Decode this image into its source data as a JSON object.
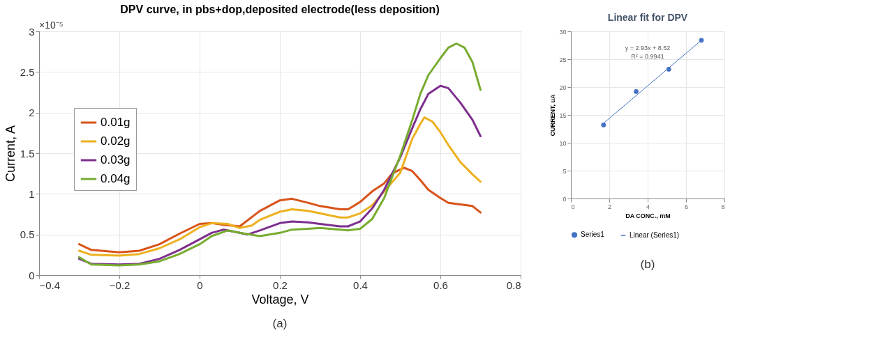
{
  "chart_data": [
    {
      "type": "line",
      "title": "DPV curve, in pbs+dop,deposited electrode(less deposition)",
      "xlabel": "Voltage, V",
      "ylabel": "Current, A",
      "xlim": [
        -0.4,
        0.8
      ],
      "xticks": [
        -0.4,
        -0.2,
        0,
        0.2,
        0.4,
        0.6,
        0.8
      ],
      "ylim": [
        0,
        3
      ],
      "yticks": [
        0,
        0.5,
        1,
        1.5,
        2,
        2.5,
        3
      ],
      "grid": true,
      "legend": "left",
      "annotations": [
        "×10⁻⁵",
        "(a)"
      ],
      "series": [
        {
          "name": "0.01g",
          "color": "#d95319",
          "x": [
            -0.3,
            -0.27,
            -0.2,
            -0.15,
            -0.1,
            -0.05,
            0,
            0.03,
            0.06,
            0.1,
            0.15,
            0.2,
            0.23,
            0.27,
            0.3,
            0.35,
            0.37,
            0.4,
            0.43,
            0.46,
            0.48,
            0.5,
            0.51,
            0.53,
            0.55,
            0.57,
            0.6,
            0.62,
            0.65,
            0.68,
            0.7
          ],
          "values": [
            0.38,
            0.31,
            0.28,
            0.3,
            0.38,
            0.51,
            0.63,
            0.64,
            0.62,
            0.6,
            0.79,
            0.92,
            0.94,
            0.89,
            0.85,
            0.81,
            0.81,
            0.9,
            1.03,
            1.13,
            1.25,
            1.3,
            1.32,
            1.28,
            1.17,
            1.05,
            0.95,
            0.89,
            0.87,
            0.85,
            0.77
          ]
        },
        {
          "name": "0.02g",
          "color": "#edb120",
          "x": [
            -0.3,
            -0.27,
            -0.2,
            -0.15,
            -0.1,
            -0.05,
            0,
            0.03,
            0.07,
            0.1,
            0.13,
            0.15,
            0.2,
            0.23,
            0.27,
            0.3,
            0.35,
            0.37,
            0.4,
            0.43,
            0.46,
            0.5,
            0.53,
            0.55,
            0.56,
            0.58,
            0.6,
            0.62,
            0.65,
            0.68,
            0.7
          ],
          "values": [
            0.3,
            0.25,
            0.24,
            0.26,
            0.33,
            0.44,
            0.59,
            0.64,
            0.63,
            0.58,
            0.61,
            0.68,
            0.78,
            0.81,
            0.79,
            0.76,
            0.71,
            0.71,
            0.76,
            0.86,
            1.03,
            1.26,
            1.68,
            1.86,
            1.94,
            1.89,
            1.76,
            1.6,
            1.39,
            1.24,
            1.15
          ]
        },
        {
          "name": "0.03g",
          "color": "#7e2f8e",
          "x": [
            -0.3,
            -0.27,
            -0.2,
            -0.15,
            -0.1,
            -0.05,
            0,
            0.03,
            0.06,
            0.1,
            0.12,
            0.15,
            0.2,
            0.23,
            0.27,
            0.3,
            0.35,
            0.37,
            0.4,
            0.43,
            0.46,
            0.5,
            0.53,
            0.55,
            0.57,
            0.6,
            0.62,
            0.65,
            0.68,
            0.7
          ],
          "values": [
            0.2,
            0.14,
            0.13,
            0.14,
            0.2,
            0.31,
            0.44,
            0.52,
            0.56,
            0.52,
            0.5,
            0.55,
            0.64,
            0.66,
            0.65,
            0.63,
            0.6,
            0.6,
            0.66,
            0.82,
            1.05,
            1.45,
            1.81,
            2.04,
            2.23,
            2.33,
            2.3,
            2.12,
            1.91,
            1.71
          ]
        },
        {
          "name": "0.04g",
          "color": "#77ac30",
          "x": [
            -0.3,
            -0.27,
            -0.2,
            -0.15,
            -0.1,
            -0.05,
            0,
            0.03,
            0.07,
            0.1,
            0.15,
            0.2,
            0.23,
            0.27,
            0.3,
            0.35,
            0.37,
            0.4,
            0.43,
            0.46,
            0.5,
            0.53,
            0.55,
            0.57,
            0.6,
            0.62,
            0.64,
            0.66,
            0.68,
            0.7
          ],
          "values": [
            0.22,
            0.13,
            0.12,
            0.13,
            0.17,
            0.26,
            0.38,
            0.48,
            0.55,
            0.52,
            0.48,
            0.52,
            0.56,
            0.57,
            0.58,
            0.56,
            0.55,
            0.57,
            0.69,
            0.95,
            1.47,
            1.91,
            2.23,
            2.46,
            2.67,
            2.8,
            2.85,
            2.8,
            2.62,
            2.28
          ]
        }
      ]
    },
    {
      "type": "scatter",
      "title": "Linear fit for DPV",
      "xlabel": "DA CONC., mM",
      "ylabel": "CURRENT, uA",
      "xlim": [
        0,
        8
      ],
      "xticks": [
        0,
        2,
        4,
        6,
        8
      ],
      "ylim": [
        0,
        30
      ],
      "yticks": [
        0,
        5,
        10,
        15,
        20,
        25,
        30
      ],
      "grid": true,
      "legend": "bottom",
      "annotations": [
        "y = 2.93x + 8.52",
        "R² = 0.9941",
        "(b)"
      ],
      "series": [
        {
          "name": "Series1",
          "color": "#4472c4",
          "marker": "circle",
          "x": [
            1.7,
            3.4,
            5.1,
            6.8
          ],
          "values": [
            13.2,
            19.2,
            23.2,
            28.4
          ]
        },
        {
          "name": "Linear (Series1)",
          "type": "line",
          "color": "#4472c4",
          "x": [
            1.7,
            6.8
          ],
          "values": [
            13.5,
            28.4
          ]
        }
      ]
    }
  ]
}
